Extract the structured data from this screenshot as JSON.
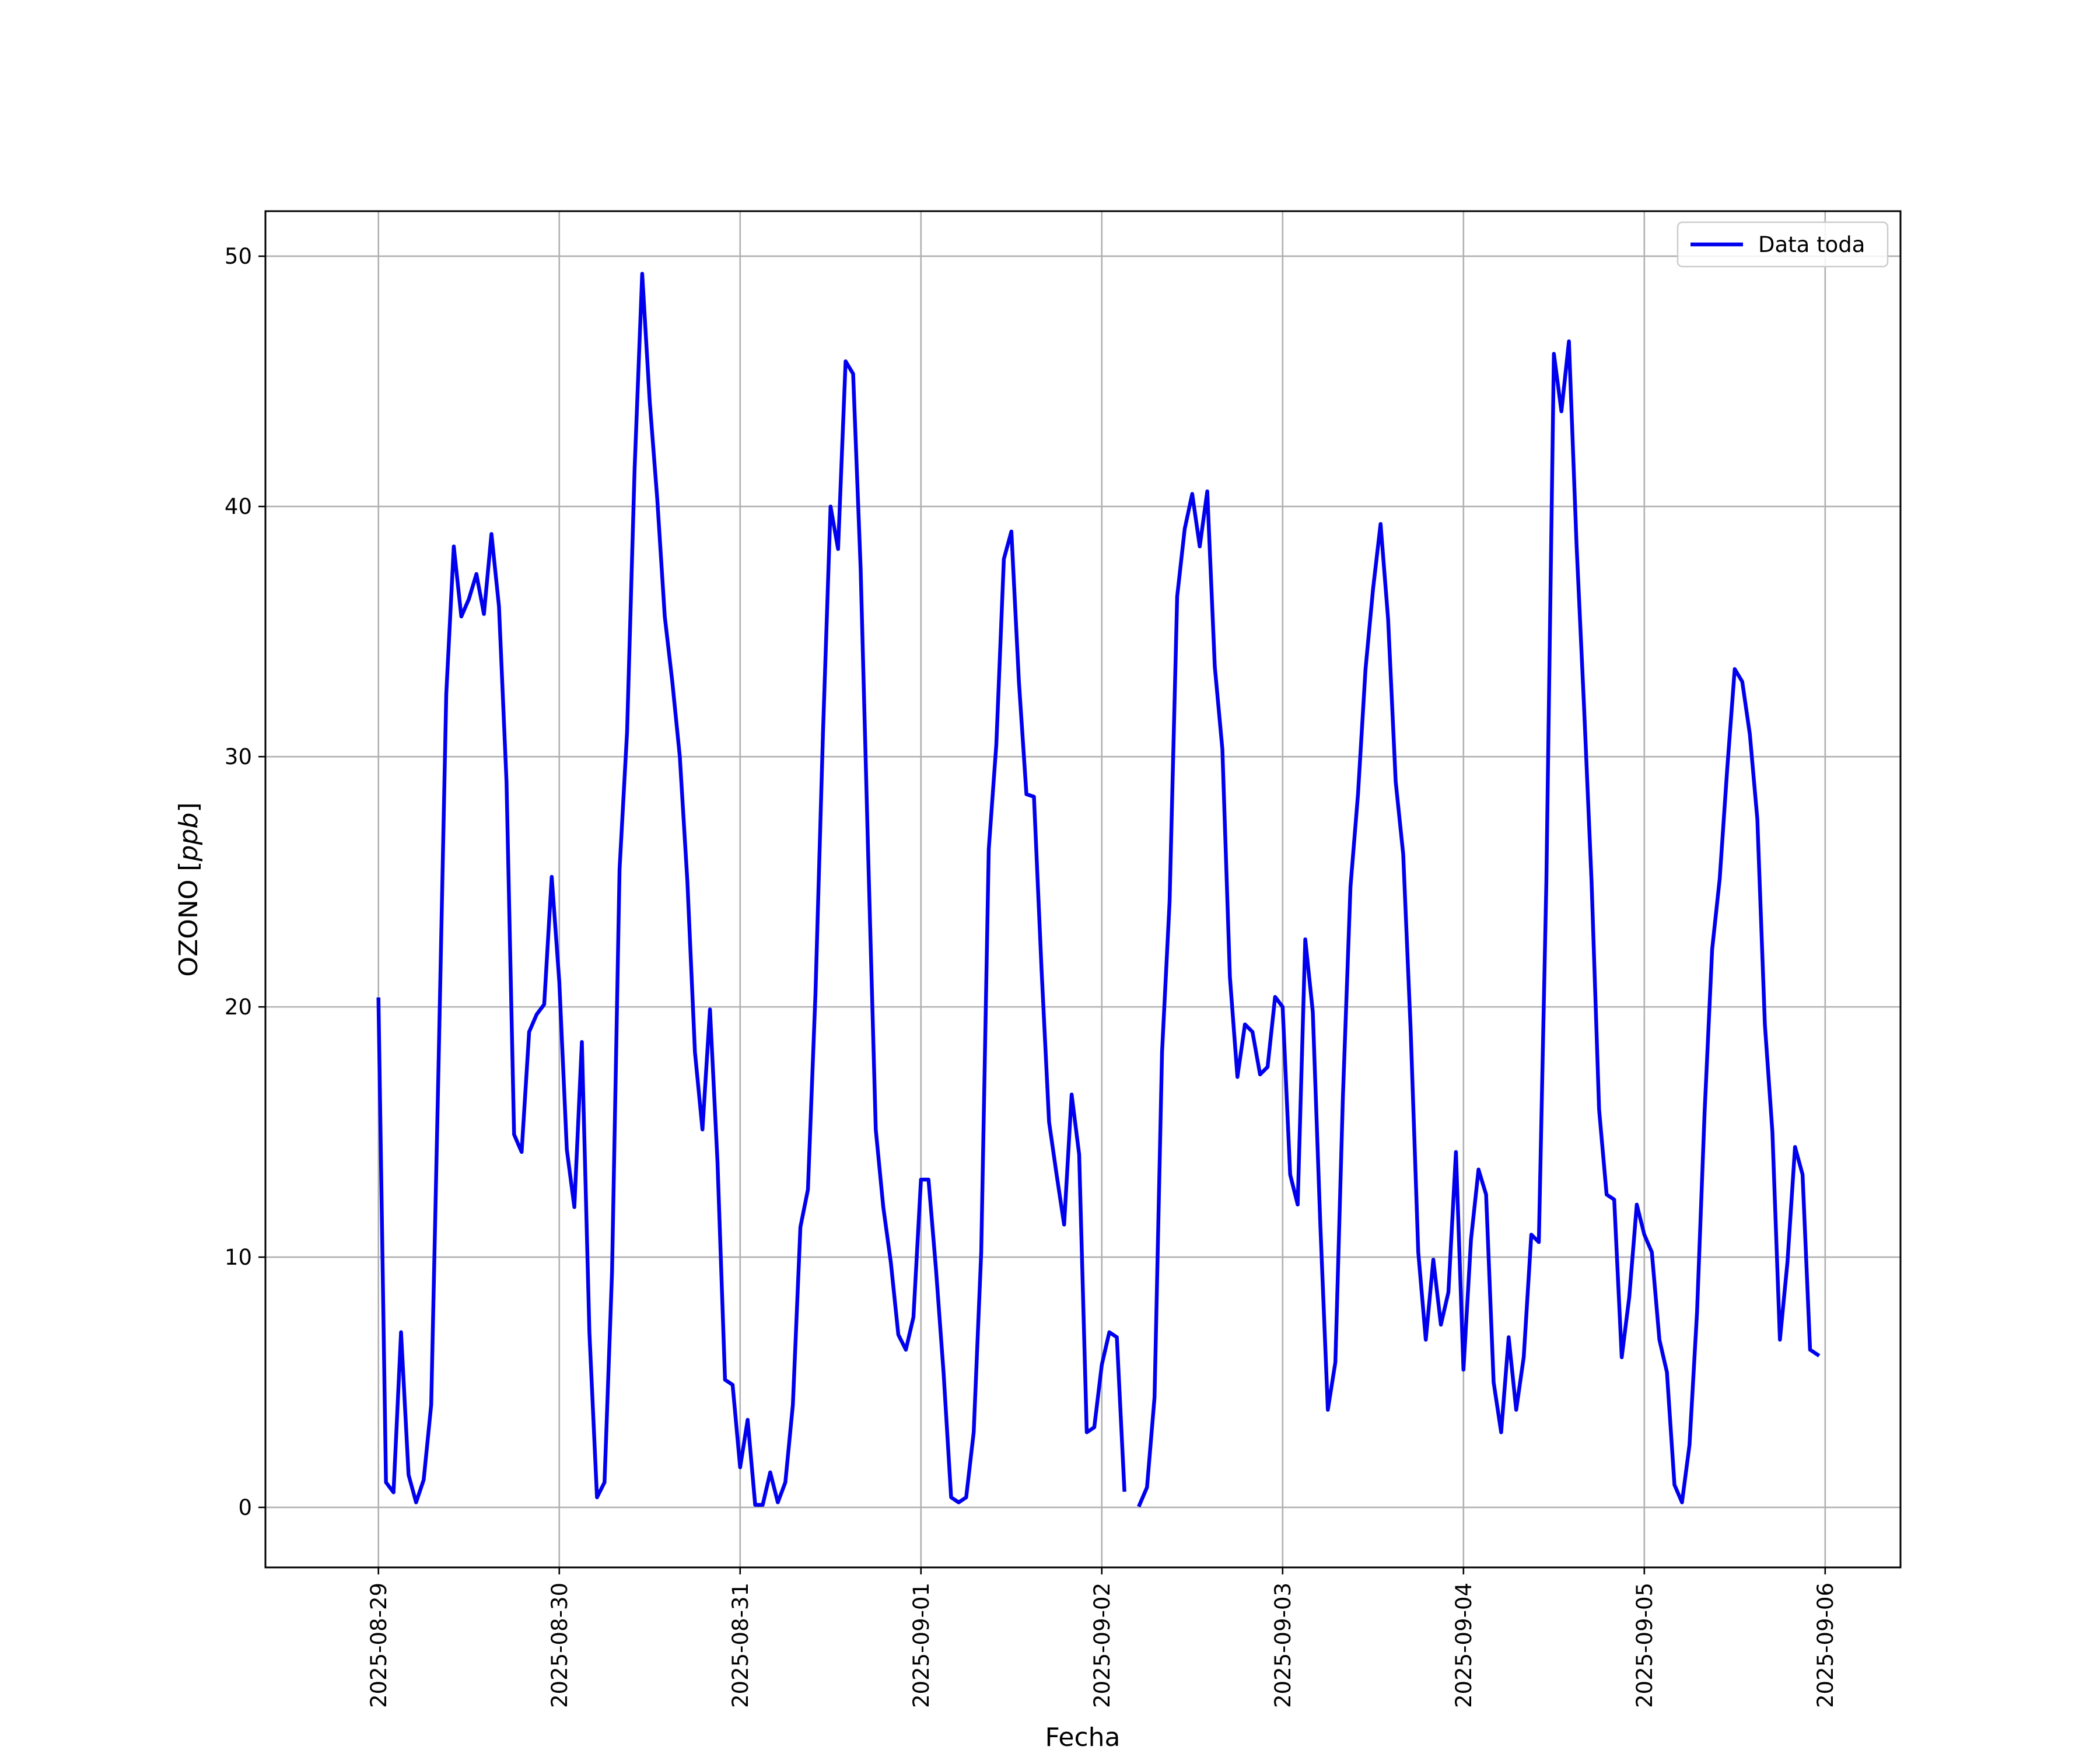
{
  "chart_data": {
    "type": "line",
    "xlabel": "Fecha",
    "ylabel": "OZONO [ppb]",
    "ylabel_text": "OZONO [",
    "ylabel_unit": "ppb",
    "ylabel_close": "]",
    "x_ticks": [
      "2025-08-29",
      "2025-08-30",
      "2025-08-31",
      "2025-09-01",
      "2025-09-02",
      "2025-09-03",
      "2025-09-04",
      "2025-09-05",
      "2025-09-06"
    ],
    "y_ticks": [
      "0",
      "10",
      "20",
      "30",
      "40",
      "50"
    ],
    "xlim": [
      "2025-08-28 09:00",
      "2025-09-06 10:00"
    ],
    "ylim": [
      -2.4,
      51.8
    ],
    "grid": true,
    "legend_position": "top-right",
    "colors": {
      "series": "#0000ee",
      "grid": "#b0b0b0",
      "axes": "#000000"
    },
    "series": [
      {
        "name": "Data toda",
        "points": [
          [
            "2025-08-29 00:00",
            20.3
          ],
          [
            "2025-08-29 01:00",
            1.0
          ],
          [
            "2025-08-29 02:00",
            0.6
          ],
          [
            "2025-08-29 03:00",
            7.0
          ],
          [
            "2025-08-29 04:00",
            1.3
          ],
          [
            "2025-08-29 05:00",
            0.2
          ],
          [
            "2025-08-29 06:00",
            1.1
          ],
          [
            "2025-08-29 07:00",
            4.1
          ],
          [
            "2025-08-29 08:00",
            18.0
          ],
          [
            "2025-08-29 09:00",
            32.5
          ],
          [
            "2025-08-29 10:00",
            38.4
          ],
          [
            "2025-08-29 11:00",
            35.6
          ],
          [
            "2025-08-29 12:00",
            36.3
          ],
          [
            "2025-08-29 13:00",
            37.3
          ],
          [
            "2025-08-29 14:00",
            35.7
          ],
          [
            "2025-08-29 15:00",
            38.9
          ],
          [
            "2025-08-29 16:00",
            36.0
          ],
          [
            "2025-08-29 17:00",
            29.0
          ],
          [
            "2025-08-29 18:00",
            14.9
          ],
          [
            "2025-08-29 19:00",
            14.2
          ],
          [
            "2025-08-29 20:00",
            19.0
          ],
          [
            "2025-08-29 21:00",
            19.7
          ],
          [
            "2025-08-29 22:00",
            20.1
          ],
          [
            "2025-08-29 23:00",
            25.2
          ],
          [
            "2025-08-30 00:00",
            21.0
          ],
          [
            "2025-08-30 01:00",
            14.3
          ],
          [
            "2025-08-30 02:00",
            12.0
          ],
          [
            "2025-08-30 03:00",
            18.6
          ],
          [
            "2025-08-30 04:00",
            7.0
          ],
          [
            "2025-08-30 05:00",
            0.4
          ],
          [
            "2025-08-30 06:00",
            1.0
          ],
          [
            "2025-08-30 07:00",
            9.4
          ],
          [
            "2025-08-30 08:00",
            25.5
          ],
          [
            "2025-08-30 09:00",
            31.0
          ],
          [
            "2025-08-30 10:00",
            41.5
          ],
          [
            "2025-08-30 11:00",
            49.3
          ],
          [
            "2025-08-30 12:00",
            44.2
          ],
          [
            "2025-08-30 13:00",
            40.3
          ],
          [
            "2025-08-30 14:00",
            35.6
          ],
          [
            "2025-08-30 15:00",
            33.0
          ],
          [
            "2025-08-30 16:00",
            30.0
          ],
          [
            "2025-08-30 17:00",
            25.0
          ],
          [
            "2025-08-30 18:00",
            18.2
          ],
          [
            "2025-08-30 19:00",
            15.1
          ],
          [
            "2025-08-30 20:00",
            19.9
          ],
          [
            "2025-08-30 21:00",
            13.8
          ],
          [
            "2025-08-30 22:00",
            5.1
          ],
          [
            "2025-08-30 23:00",
            4.9
          ],
          [
            "2025-08-31 00:00",
            1.6
          ],
          [
            "2025-08-31 01:00",
            3.5
          ],
          [
            "2025-08-31 02:00",
            0.1
          ],
          [
            "2025-08-31 03:00",
            0.1
          ],
          [
            "2025-08-31 04:00",
            1.4
          ],
          [
            "2025-08-31 05:00",
            0.2
          ],
          [
            "2025-08-31 06:00",
            1.0
          ],
          [
            "2025-08-31 07:00",
            4.1
          ],
          [
            "2025-08-31 08:00",
            11.2
          ],
          [
            "2025-08-31 09:00",
            12.7
          ],
          [
            "2025-08-31 10:00",
            20.5
          ],
          [
            "2025-08-31 11:00",
            31.0
          ],
          [
            "2025-08-31 12:00",
            40.0
          ],
          [
            "2025-08-31 13:00",
            38.3
          ],
          [
            "2025-08-31 14:00",
            45.8
          ],
          [
            "2025-08-31 15:00",
            45.3
          ],
          [
            "2025-08-31 16:00",
            37.5
          ],
          [
            "2025-08-31 17:00",
            26.0
          ],
          [
            "2025-08-31 18:00",
            15.1
          ],
          [
            "2025-08-31 19:00",
            12.0
          ],
          [
            "2025-08-31 20:00",
            9.8
          ],
          [
            "2025-08-31 21:00",
            6.9
          ],
          [
            "2025-08-31 22:00",
            6.3
          ],
          [
            "2025-08-31 23:00",
            7.6
          ],
          [
            "2025-09-01 00:00",
            13.1
          ],
          [
            "2025-09-01 01:00",
            13.1
          ],
          [
            "2025-09-01 02:00",
            9.5
          ],
          [
            "2025-09-01 03:00",
            5.4
          ],
          [
            "2025-09-01 04:00",
            0.4
          ],
          [
            "2025-09-01 05:00",
            0.2
          ],
          [
            "2025-09-01 06:00",
            0.4
          ],
          [
            "2025-09-01 07:00",
            3.0
          ],
          [
            "2025-09-01 08:00",
            10.2
          ],
          [
            "2025-09-01 09:00",
            26.3
          ],
          [
            "2025-09-01 10:00",
            30.5
          ],
          [
            "2025-09-01 11:00",
            37.9
          ],
          [
            "2025-09-01 12:00",
            39.0
          ],
          [
            "2025-09-01 13:00",
            33.0
          ],
          [
            "2025-09-01 14:00",
            28.5
          ],
          [
            "2025-09-01 15:00",
            28.4
          ],
          [
            "2025-09-01 16:00",
            21.5
          ],
          [
            "2025-09-01 17:00",
            15.4
          ],
          [
            "2025-09-01 18:00",
            13.3
          ],
          [
            "2025-09-01 19:00",
            11.3
          ],
          [
            "2025-09-01 20:00",
            16.5
          ],
          [
            "2025-09-01 21:00",
            14.1
          ],
          [
            "2025-09-01 22:00",
            3.0
          ],
          [
            "2025-09-01 23:00",
            3.2
          ],
          [
            "2025-09-02 00:00",
            5.7
          ],
          [
            "2025-09-02 01:00",
            7.0
          ],
          [
            "2025-09-02 02:00",
            6.8
          ],
          [
            "2025-09-02 03:00",
            0.7
          ],
          null,
          [
            "2025-09-02 05:00",
            0.1
          ],
          [
            "2025-09-02 06:00",
            0.8
          ],
          [
            "2025-09-02 07:00",
            4.4
          ],
          [
            "2025-09-02 08:00",
            18.2
          ],
          [
            "2025-09-02 09:00",
            24.2
          ],
          [
            "2025-09-02 10:00",
            36.4
          ],
          [
            "2025-09-02 11:00",
            39.1
          ],
          [
            "2025-09-02 12:00",
            40.5
          ],
          [
            "2025-09-02 13:00",
            38.4
          ],
          [
            "2025-09-02 14:00",
            40.6
          ],
          [
            "2025-09-02 15:00",
            33.6
          ],
          [
            "2025-09-02 16:00",
            30.3
          ],
          [
            "2025-09-02 17:00",
            21.2
          ],
          [
            "2025-09-02 18:00",
            17.2
          ],
          [
            "2025-09-02 19:00",
            19.3
          ],
          [
            "2025-09-02 20:00",
            19.0
          ],
          [
            "2025-09-02 21:00",
            17.3
          ],
          [
            "2025-09-02 22:00",
            17.6
          ],
          [
            "2025-09-02 23:00",
            20.4
          ],
          [
            "2025-09-03 00:00",
            20.0
          ],
          [
            "2025-09-03 01:00",
            13.3
          ],
          [
            "2025-09-03 02:00",
            12.1
          ],
          [
            "2025-09-03 03:00",
            22.7
          ],
          [
            "2025-09-03 04:00",
            19.8
          ],
          [
            "2025-09-03 05:00",
            11.3
          ],
          [
            "2025-09-03 06:00",
            3.9
          ],
          [
            "2025-09-03 07:00",
            5.8
          ],
          [
            "2025-09-03 08:00",
            16.4
          ],
          [
            "2025-09-03 09:00",
            24.8
          ],
          [
            "2025-09-03 10:00",
            28.5
          ],
          [
            "2025-09-03 11:00",
            33.5
          ],
          [
            "2025-09-03 12:00",
            36.7
          ],
          [
            "2025-09-03 13:00",
            39.3
          ],
          [
            "2025-09-03 14:00",
            35.5
          ],
          [
            "2025-09-03 15:00",
            29.0
          ],
          [
            "2025-09-03 16:00",
            26.1
          ],
          [
            "2025-09-03 17:00",
            19.0
          ],
          [
            "2025-09-03 18:00",
            10.2
          ],
          [
            "2025-09-03 19:00",
            6.7
          ],
          [
            "2025-09-03 20:00",
            9.9
          ],
          [
            "2025-09-03 21:00",
            7.3
          ],
          [
            "2025-09-03 22:00",
            8.6
          ],
          [
            "2025-09-03 23:00",
            14.2
          ],
          [
            "2025-09-04 00:00",
            5.5
          ],
          [
            "2025-09-04 01:00",
            10.7
          ],
          [
            "2025-09-04 02:00",
            13.5
          ],
          [
            "2025-09-04 03:00",
            12.5
          ],
          [
            "2025-09-04 04:00",
            5.0
          ],
          [
            "2025-09-04 05:00",
            3.0
          ],
          [
            "2025-09-04 06:00",
            6.8
          ],
          [
            "2025-09-04 07:00",
            3.9
          ],
          [
            "2025-09-04 08:00",
            6.0
          ],
          [
            "2025-09-04 09:00",
            10.9
          ],
          [
            "2025-09-04 10:00",
            10.6
          ],
          [
            "2025-09-04 11:00",
            25.0
          ],
          [
            "2025-09-04 12:00",
            46.1
          ],
          [
            "2025-09-04 13:00",
            43.8
          ],
          [
            "2025-09-04 14:00",
            46.6
          ],
          [
            "2025-09-04 15:00",
            38.5
          ],
          [
            "2025-09-04 16:00",
            32.0
          ],
          [
            "2025-09-04 17:00",
            25.0
          ],
          [
            "2025-09-04 18:00",
            15.9
          ],
          [
            "2025-09-04 19:00",
            12.5
          ],
          [
            "2025-09-04 20:00",
            12.3
          ],
          [
            "2025-09-04 21:00",
            6.0
          ],
          [
            "2025-09-04 22:00",
            8.4
          ],
          [
            "2025-09-04 23:00",
            12.1
          ],
          [
            "2025-09-05 00:00",
            10.9
          ],
          [
            "2025-09-05 01:00",
            10.2
          ],
          [
            "2025-09-05 02:00",
            6.7
          ],
          [
            "2025-09-05 03:00",
            5.4
          ],
          [
            "2025-09-05 04:00",
            0.9
          ],
          [
            "2025-09-05 05:00",
            0.2
          ],
          [
            "2025-09-05 06:00",
            2.5
          ],
          [
            "2025-09-05 07:00",
            7.8
          ],
          [
            "2025-09-05 08:00",
            15.8
          ],
          [
            "2025-09-05 09:00",
            22.3
          ],
          [
            "2025-09-05 10:00",
            25.1
          ],
          [
            "2025-09-05 11:00",
            29.5
          ],
          [
            "2025-09-05 12:00",
            33.5
          ],
          [
            "2025-09-05 13:00",
            33.0
          ],
          [
            "2025-09-05 14:00",
            30.9
          ],
          [
            "2025-09-05 15:00",
            27.5
          ],
          [
            "2025-09-05 16:00",
            19.3
          ],
          [
            "2025-09-05 17:00",
            15.0
          ],
          [
            "2025-09-05 18:00",
            6.7
          ],
          [
            "2025-09-05 19:00",
            9.8
          ],
          [
            "2025-09-05 20:00",
            14.4
          ],
          [
            "2025-09-05 21:00",
            13.3
          ],
          [
            "2025-09-05 22:00",
            6.3
          ],
          [
            "2025-09-05 23:00",
            6.1
          ]
        ]
      }
    ]
  }
}
